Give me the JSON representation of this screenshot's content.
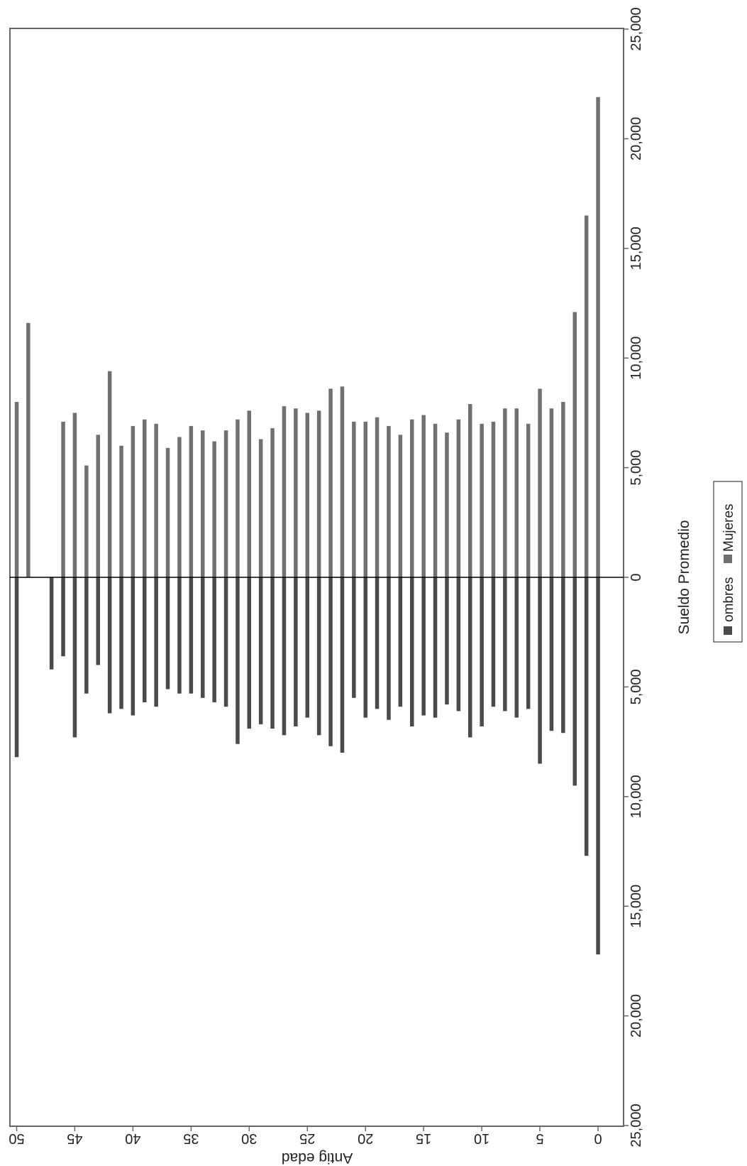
{
  "chart_data": {
    "type": "bar",
    "orientation": "population-pyramid (rotated 90°)",
    "xlabel": "Sueldo Promedio",
    "ylabel": "Antig edad",
    "x_ticks": [
      "25,000",
      "20,000",
      "15,000",
      "10,000",
      "5,000",
      "0",
      "5,000",
      "10,000",
      "15,000",
      "20,000",
      "25,000"
    ],
    "y_ticks": [
      "0",
      "5",
      "10",
      "15",
      "20",
      "25",
      "30",
      "35",
      "40",
      "45",
      "50"
    ],
    "xlim": [
      -25000,
      25000
    ],
    "ylim": [
      0,
      50
    ],
    "grid": false,
    "legend_position": "bottom",
    "colors": {
      "hombres": "#4a4a4a",
      "mujeres": "#707070"
    },
    "series": [
      {
        "name": "ombres",
        "points": [
          [
            0,
            17200
          ],
          [
            1,
            12700
          ],
          [
            2,
            9500
          ],
          [
            3,
            7100
          ],
          [
            4,
            7000
          ],
          [
            5,
            8500
          ],
          [
            6,
            6000
          ],
          [
            7,
            6400
          ],
          [
            8,
            6100
          ],
          [
            9,
            5900
          ],
          [
            10,
            6800
          ],
          [
            11,
            7300
          ],
          [
            12,
            6100
          ],
          [
            13,
            5800
          ],
          [
            14,
            6400
          ],
          [
            15,
            6300
          ],
          [
            16,
            6800
          ],
          [
            17,
            5900
          ],
          [
            18,
            6500
          ],
          [
            19,
            6000
          ],
          [
            20,
            6400
          ],
          [
            21,
            5500
          ],
          [
            22,
            8000
          ],
          [
            23,
            7700
          ],
          [
            24,
            7200
          ],
          [
            25,
            6400
          ],
          [
            26,
            6800
          ],
          [
            27,
            7200
          ],
          [
            28,
            6900
          ],
          [
            29,
            6700
          ],
          [
            30,
            6900
          ],
          [
            31,
            7600
          ],
          [
            32,
            5900
          ],
          [
            33,
            5700
          ],
          [
            34,
            5500
          ],
          [
            35,
            5300
          ],
          [
            36,
            5300
          ],
          [
            37,
            5100
          ],
          [
            38,
            5900
          ],
          [
            39,
            5700
          ],
          [
            40,
            6300
          ],
          [
            41,
            6000
          ],
          [
            42,
            6200
          ],
          [
            43,
            4000
          ],
          [
            44,
            5300
          ],
          [
            45,
            7300
          ],
          [
            46,
            3600
          ],
          [
            47,
            4200
          ],
          [
            50,
            8200
          ]
        ]
      },
      {
        "name": "Mujeres",
        "points": [
          [
            0,
            21900
          ],
          [
            1,
            16500
          ],
          [
            2,
            12100
          ],
          [
            3,
            8000
          ],
          [
            4,
            7700
          ],
          [
            5,
            8600
          ],
          [
            6,
            7000
          ],
          [
            7,
            7700
          ],
          [
            8,
            7700
          ],
          [
            9,
            7100
          ],
          [
            10,
            7000
          ],
          [
            11,
            7900
          ],
          [
            12,
            7200
          ],
          [
            13,
            6600
          ],
          [
            14,
            7000
          ],
          [
            15,
            7400
          ],
          [
            16,
            7200
          ],
          [
            17,
            6500
          ],
          [
            18,
            6900
          ],
          [
            19,
            7300
          ],
          [
            20,
            7100
          ],
          [
            21,
            7100
          ],
          [
            22,
            8700
          ],
          [
            23,
            8600
          ],
          [
            24,
            7600
          ],
          [
            25,
            7500
          ],
          [
            26,
            7700
          ],
          [
            27,
            7800
          ],
          [
            28,
            6800
          ],
          [
            29,
            6300
          ],
          [
            30,
            7600
          ],
          [
            31,
            7200
          ],
          [
            32,
            6700
          ],
          [
            33,
            6200
          ],
          [
            34,
            6700
          ],
          [
            35,
            6900
          ],
          [
            36,
            6400
          ],
          [
            37,
            5900
          ],
          [
            38,
            7000
          ],
          [
            39,
            7200
          ],
          [
            40,
            6900
          ],
          [
            41,
            6000
          ],
          [
            42,
            9400
          ],
          [
            43,
            6500
          ],
          [
            44,
            5100
          ],
          [
            45,
            7500
          ],
          [
            46,
            7100
          ],
          [
            49,
            11600
          ],
          [
            50,
            8000
          ]
        ]
      }
    ]
  }
}
